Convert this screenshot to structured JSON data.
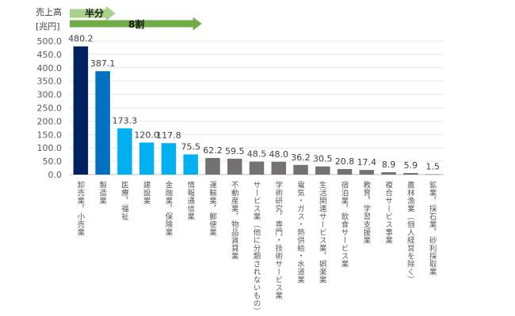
{
  "chart_data": {
    "type": "bar",
    "title": "",
    "ylabel_line1": "売上高",
    "ylabel_line2": "[兆円]",
    "xlabel": "",
    "ylim": [
      0,
      500
    ],
    "yticks": [
      "0.0",
      "50.0",
      "100.0",
      "150.0",
      "200.0",
      "250.0",
      "300.0",
      "350.0",
      "400.0",
      "450.0",
      "500.0"
    ],
    "grid": true,
    "categories": [
      "卸売業，小売業",
      "製造業",
      "医療，福祉",
      "建設業",
      "金融業，保険業",
      "情報通信業",
      "運輸業，郵便業",
      "不動産業，物品賃貸業",
      "サービス業（他に分類されないもの）",
      "学術研究，専門・技術サービス業",
      "電気・ガス・熱供給・水道業",
      "生活関連サービス業，娯楽業",
      "宿泊業，飲食サービス業",
      "教育，学習支援業",
      "複合サービス事業",
      "農林漁業（個人経営を除く）",
      "鉱業，採石業，砂利採取業"
    ],
    "values": [
      480.2,
      387.1,
      173.3,
      120.0,
      117.8,
      75.5,
      62.2,
      59.5,
      48.5,
      48.0,
      36.2,
      30.5,
      20.8,
      17.4,
      8.9,
      5.9,
      1.5
    ],
    "value_labels": [
      "480.2",
      "387.1",
      "173.3",
      "120.0",
      "117.8",
      "75.5",
      "62.2",
      "59.5",
      "48.5",
      "48.0",
      "36.2",
      "30.5",
      "20.8",
      "17.4",
      "8.9",
      "5.9",
      "1.5"
    ],
    "bar_colors": [
      "#002060",
      "#0070c0",
      "#00b0f0",
      "#00b0f0",
      "#00b0f0",
      "#00b0f0",
      "#767171",
      "#767171",
      "#767171",
      "#767171",
      "#767171",
      "#767171",
      "#767171",
      "#767171",
      "#767171",
      "#767171",
      "#767171"
    ],
    "annotations": [
      {
        "label": "半分",
        "color": "#a9d18e",
        "span_bars": 2
      },
      {
        "label": "8割",
        "color": "#70ad47",
        "span_bars": 6
      }
    ]
  }
}
